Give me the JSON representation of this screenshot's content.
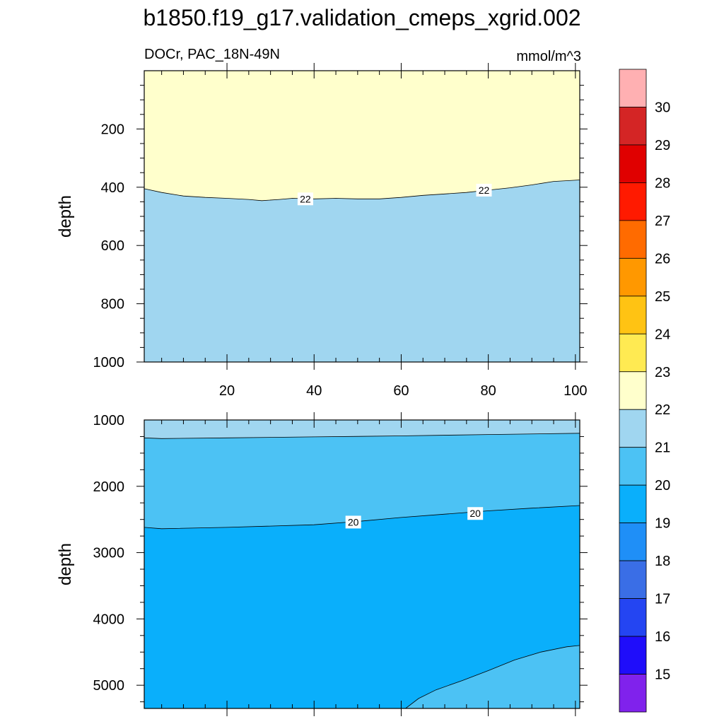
{
  "title": "b1850.f19_g17.validation_cmeps_xgrid.002",
  "chart_data": {
    "type": "contour",
    "variable_label": "DOCr, PAC_18N-49N",
    "units": "mmol/m^3",
    "x_ticks": [
      20,
      40,
      60,
      80,
      100
    ],
    "x_range": [
      1,
      101
    ],
    "top_panel": {
      "ylabel": "depth",
      "y_range": [
        0,
        1000
      ],
      "y_ticks": [
        200,
        400,
        600,
        800,
        1000
      ],
      "regions": [
        {
          "name": "above-22",
          "color": "#ffffcc"
        },
        {
          "name": "21-22",
          "color": "#a0d6f0"
        }
      ],
      "contours": [
        {
          "level": 22,
          "label": "22",
          "points": [
            [
              1,
              405
            ],
            [
              5,
              418
            ],
            [
              10,
              430
            ],
            [
              15,
              435
            ],
            [
              20,
              438
            ],
            [
              25,
              442
            ],
            [
              28,
              446
            ],
            [
              32,
              442
            ],
            [
              35,
              438
            ],
            [
              40,
              440
            ],
            [
              45,
              438
            ],
            [
              50,
              440
            ],
            [
              55,
              440
            ],
            [
              60,
              435
            ],
            [
              65,
              428
            ],
            [
              70,
              423
            ],
            [
              75,
              418
            ],
            [
              80,
              410
            ],
            [
              85,
              402
            ],
            [
              90,
              392
            ],
            [
              95,
              380
            ],
            [
              101,
              375
            ]
          ],
          "label_positions": [
            [
              38,
              440
            ],
            [
              79,
              410
            ]
          ]
        }
      ]
    },
    "bottom_panel": {
      "ylabel": "depth",
      "y_range": [
        1000,
        5350
      ],
      "y_ticks": [
        1000,
        2000,
        3000,
        4000,
        5000
      ],
      "regions": [
        {
          "name": "21-22",
          "color": "#a0d6f0"
        },
        {
          "name": "20-21",
          "color": "#4cc2f4"
        },
        {
          "name": "19-20",
          "color": "#0aaffb"
        },
        {
          "name": "20-21-bottom",
          "color": "#4cc2f4"
        }
      ],
      "contours": [
        {
          "level": 21,
          "label": "",
          "points": [
            [
              1,
              1270
            ],
            [
              5,
              1280
            ],
            [
              20,
              1270
            ],
            [
              40,
              1255
            ],
            [
              60,
              1240
            ],
            [
              80,
              1220
            ],
            [
              101,
              1200
            ]
          ],
          "label_positions": []
        },
        {
          "level": 20,
          "label": "20",
          "points": [
            [
              1,
              2620
            ],
            [
              5,
              2640
            ],
            [
              20,
              2620
            ],
            [
              40,
              2580
            ],
            [
              50,
              2530
            ],
            [
              60,
              2470
            ],
            [
              70,
              2420
            ],
            [
              80,
              2370
            ],
            [
              90,
              2330
            ],
            [
              101,
              2290
            ]
          ],
          "label_positions": [
            [
              49,
              2540
            ],
            [
              77,
              2410
            ]
          ]
        },
        {
          "level": 20,
          "label": "",
          "points": [
            [
              61,
              5350
            ],
            [
              64,
              5200
            ],
            [
              68,
              5070
            ],
            [
              74,
              4930
            ],
            [
              80,
              4780
            ],
            [
              86,
              4620
            ],
            [
              92,
              4500
            ],
            [
              98,
              4420
            ],
            [
              101,
              4400
            ]
          ],
          "label_positions": []
        }
      ]
    },
    "colorbar": {
      "labels": [
        "30",
        "29",
        "28",
        "27",
        "26",
        "25",
        "24",
        "23",
        "22",
        "21",
        "20",
        "19",
        "18",
        "17",
        "16",
        "15"
      ],
      "colors": [
        "#ffb0b2",
        "#d42525",
        "#e00000",
        "#ff1a00",
        "#ff6b00",
        "#ff9800",
        "#ffc313",
        "#ffea52",
        "#ffffcc",
        "#a0d6f0",
        "#4cc2f4",
        "#0aaffb",
        "#1f8ff7",
        "#3a6ee6",
        "#2445f2",
        "#1f0dfa",
        "#8022ec"
      ]
    }
  }
}
